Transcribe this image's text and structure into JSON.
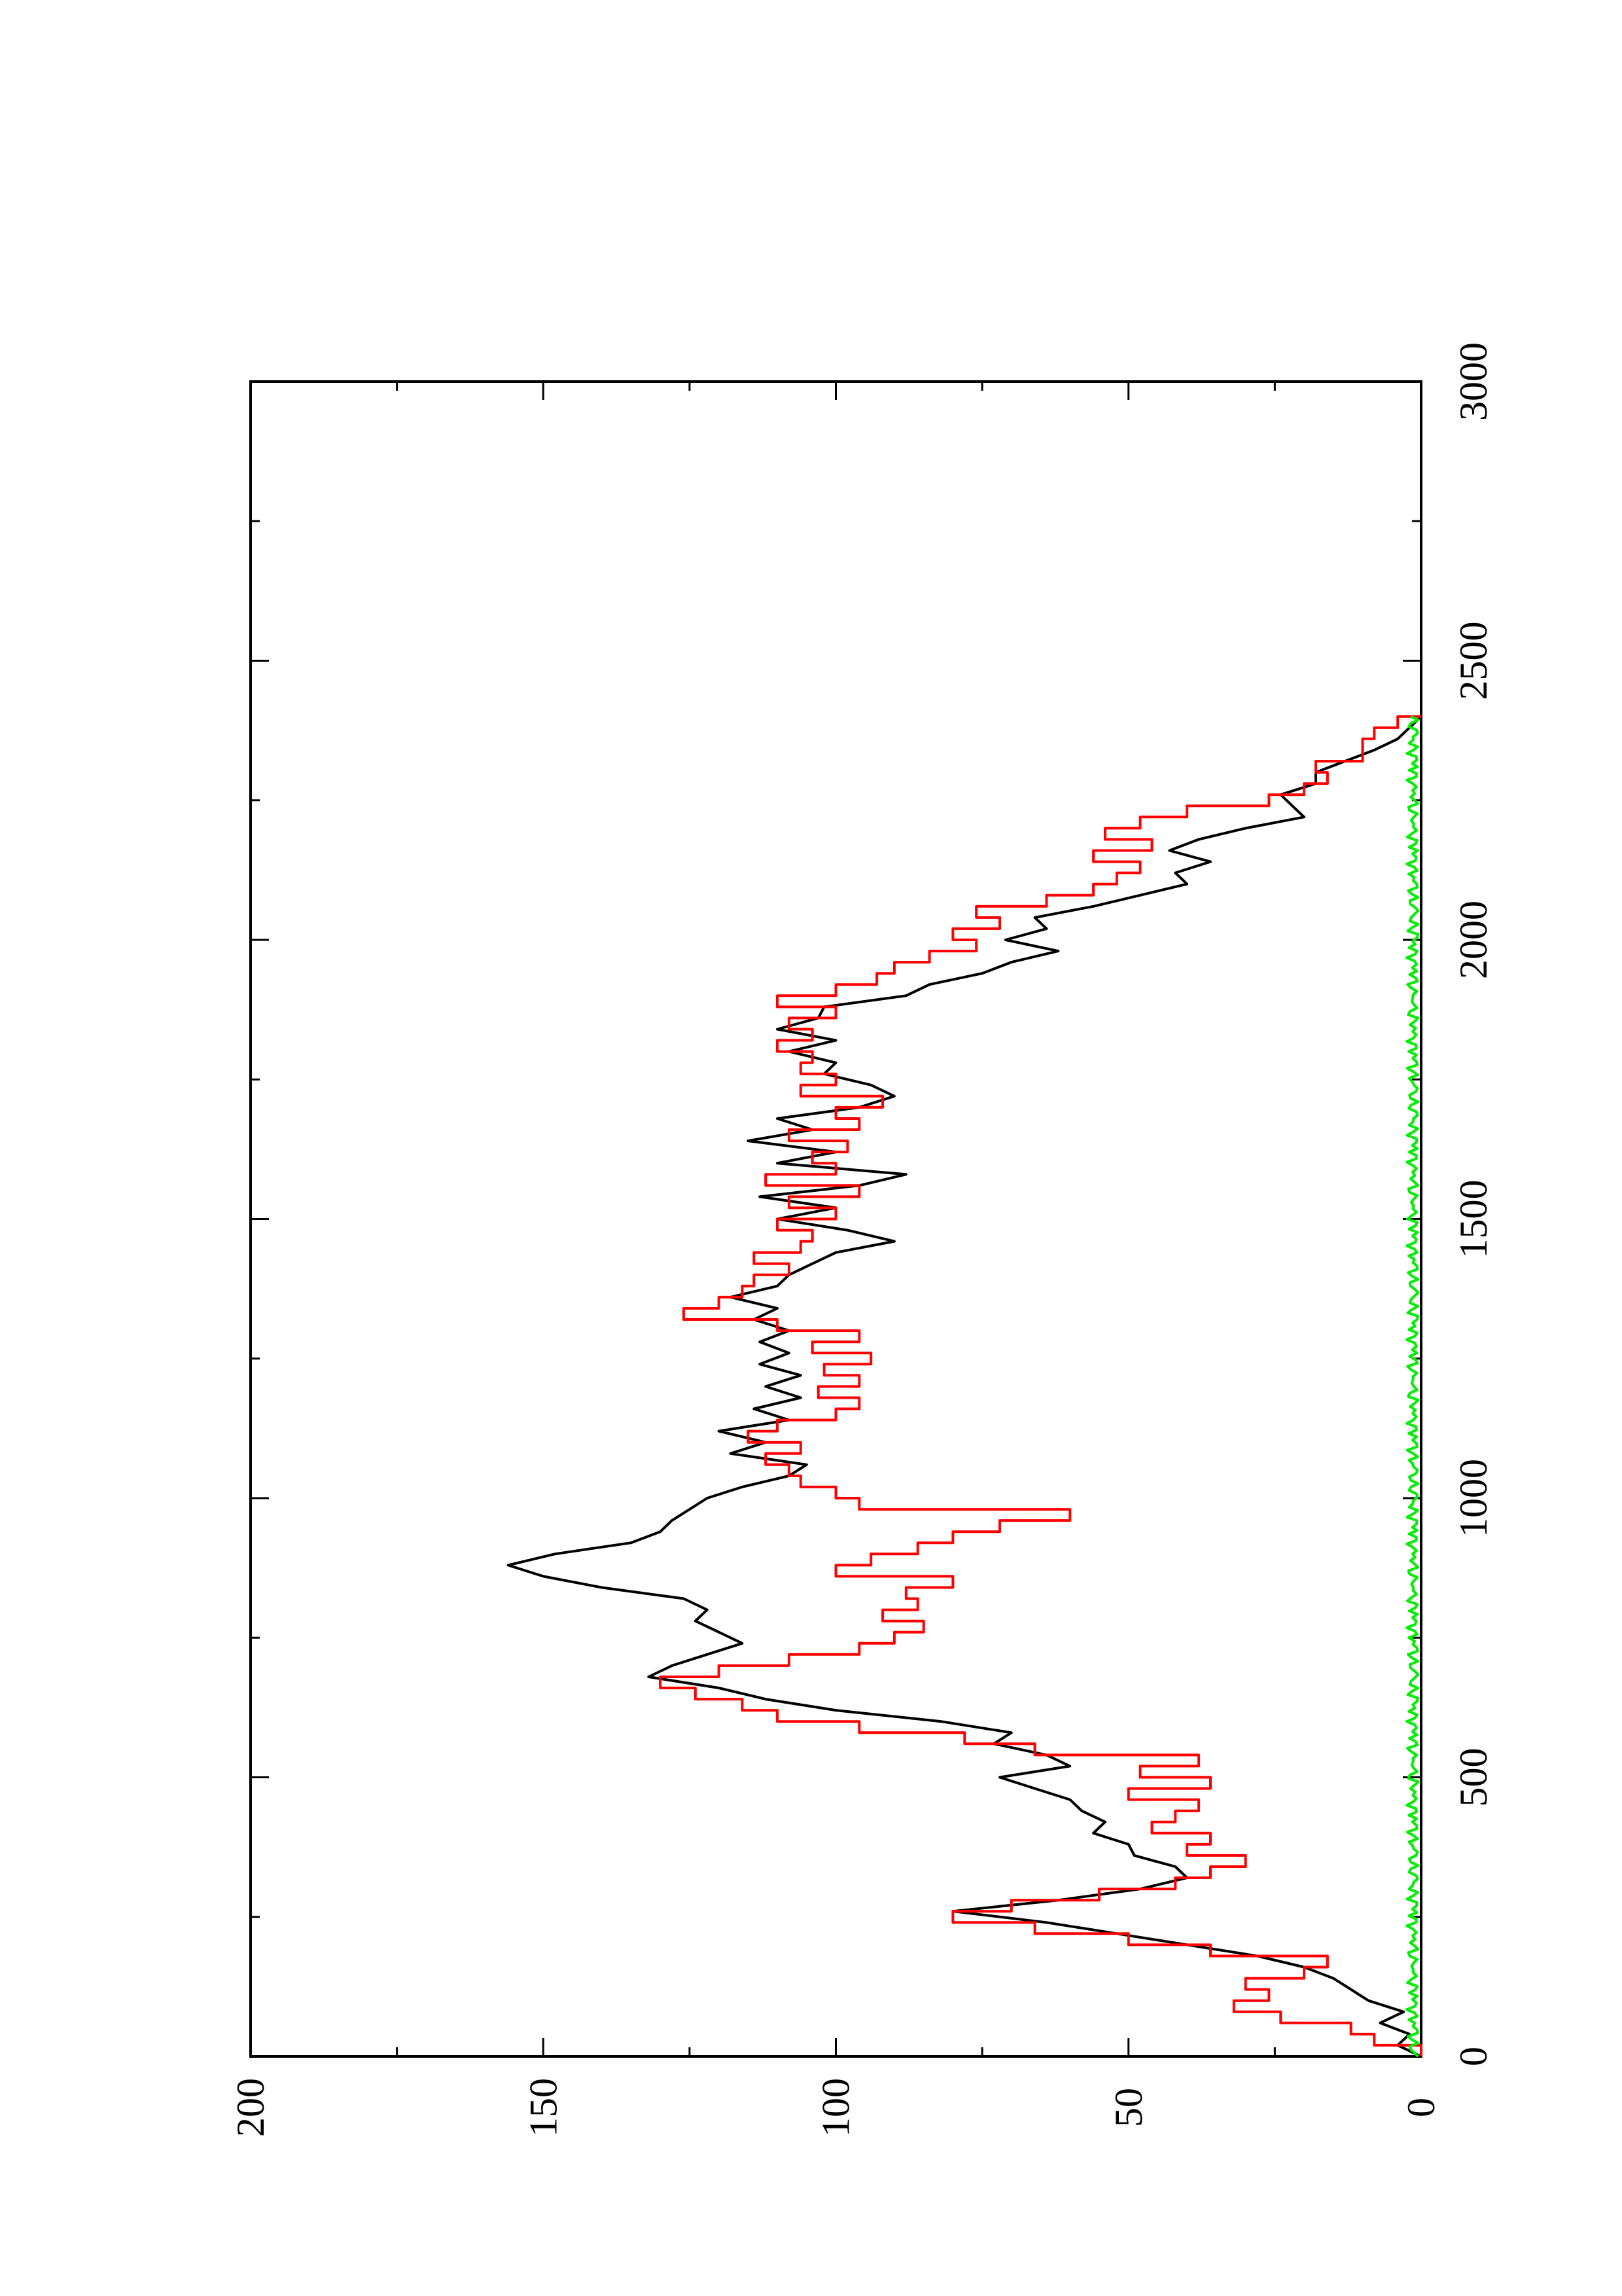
{
  "chart_data": {
    "type": "line",
    "title": "",
    "xlabel": "",
    "ylabel": "",
    "xlim": [
      0,
      3000
    ],
    "ylim": [
      0,
      200
    ],
    "x_ticks": [
      0,
      500,
      1000,
      1500,
      2000,
      2500,
      3000
    ],
    "x_tick_labels": [
      "0",
      "500",
      "1000",
      "1500",
      "2000",
      "2500",
      "3000"
    ],
    "y_ticks": [
      0,
      50,
      100,
      150,
      200
    ],
    "y_tick_labels": [
      "0",
      "50",
      "100",
      "150",
      "200"
    ],
    "grid": false,
    "legend": "none",
    "orientation": "page rotated 90 degrees counter-clockwise",
    "series": [
      {
        "color": "#000000",
        "x": [
          0,
          20,
          40,
          60,
          80,
          100,
          120,
          140,
          160,
          180,
          200,
          220,
          240,
          260,
          280,
          300,
          320,
          340,
          360,
          380,
          400,
          420,
          440,
          460,
          480,
          500,
          520,
          540,
          560,
          580,
          600,
          620,
          640,
          660,
          680,
          700,
          720,
          740,
          760,
          780,
          800,
          820,
          840,
          860,
          880,
          900,
          920,
          940,
          960,
          980,
          1000,
          1020,
          1040,
          1060,
          1080,
          1100,
          1120,
          1140,
          1160,
          1180,
          1200,
          1220,
          1240,
          1260,
          1280,
          1300,
          1320,
          1340,
          1360,
          1380,
          1400,
          1420,
          1440,
          1460,
          1480,
          1500,
          1520,
          1540,
          1560,
          1580,
          1600,
          1620,
          1640,
          1660,
          1680,
          1700,
          1720,
          1740,
          1760,
          1780,
          1800,
          1820,
          1840,
          1860,
          1880,
          1900,
          1920,
          1940,
          1960,
          1980,
          2000,
          2020,
          2040,
          2060,
          2080,
          2100,
          2120,
          2140,
          2160,
          2180,
          2200,
          2220,
          2240,
          2260,
          2280,
          2300,
          2320,
          2340,
          2360,
          2380,
          2400
        ],
        "y": [
          0,
          4,
          2,
          7,
          3,
          9,
          12,
          15,
          20,
          28,
          40,
          52,
          64,
          80,
          62,
          48,
          40,
          42,
          49,
          50,
          56,
          54,
          58,
          60,
          66,
          72,
          60,
          64,
          73,
          70,
          82,
          100,
          112,
          120,
          132,
          128,
          122,
          116,
          120,
          124,
          122,
          126,
          140,
          150,
          156,
          148,
          135,
          130,
          128,
          125,
          122,
          116,
          108,
          105,
          118,
          112,
          120,
          108,
          114,
          106,
          112,
          106,
          113,
          108,
          113,
          108,
          114,
          110,
          118,
          110,
          108,
          104,
          100,
          90,
          98,
          110,
          100,
          113,
          96,
          88,
          110,
          100,
          115,
          104,
          110,
          96,
          90,
          94,
          102,
          100,
          108,
          100,
          110,
          103,
          102,
          88,
          84,
          75,
          70,
          62,
          71,
          64,
          66,
          56,
          48,
          40,
          42,
          36,
          43,
          38,
          30,
          20,
          22,
          24,
          18,
          18,
          13,
          8,
          4,
          2,
          0
        ],
        "name": ""
      },
      {
        "color": "#ff0000",
        "x": [
          0,
          20,
          40,
          60,
          80,
          100,
          120,
          140,
          160,
          180,
          200,
          220,
          240,
          260,
          280,
          300,
          320,
          340,
          360,
          380,
          400,
          420,
          440,
          460,
          480,
          500,
          520,
          540,
          560,
          580,
          600,
          620,
          640,
          660,
          680,
          700,
          720,
          740,
          760,
          780,
          800,
          820,
          840,
          860,
          880,
          900,
          920,
          940,
          960,
          980,
          1000,
          1020,
          1040,
          1060,
          1080,
          1100,
          1120,
          1140,
          1160,
          1180,
          1200,
          1220,
          1240,
          1260,
          1280,
          1300,
          1320,
          1340,
          1360,
          1380,
          1400,
          1420,
          1440,
          1460,
          1480,
          1500,
          1520,
          1540,
          1560,
          1580,
          1600,
          1620,
          1640,
          1660,
          1680,
          1700,
          1720,
          1740,
          1760,
          1780,
          1800,
          1820,
          1840,
          1860,
          1880,
          1900,
          1920,
          1940,
          1960,
          1980,
          2000,
          2020,
          2040,
          2060,
          2080,
          2100,
          2120,
          2140,
          2160,
          2180,
          2200,
          2220,
          2240,
          2260,
          2280,
          2300,
          2320,
          2340,
          2360,
          2380,
          2400
        ],
        "y": [
          0,
          8,
          12,
          24,
          32,
          26,
          30,
          20,
          16,
          36,
          50,
          66,
          80,
          70,
          55,
          42,
          36,
          30,
          40,
          36,
          46,
          42,
          38,
          50,
          36,
          48,
          38,
          66,
          78,
          96,
          110,
          116,
          124,
          130,
          120,
          108,
          96,
          90,
          85,
          92,
          86,
          88,
          80,
          100,
          94,
          86,
          80,
          72,
          60,
          96,
          100,
          106,
          108,
          112,
          106,
          115,
          110,
          100,
          96,
          103,
          96,
          102,
          94,
          104,
          96,
          110,
          126,
          120,
          116,
          114,
          108,
          114,
          106,
          104,
          110,
          100,
          108,
          96,
          112,
          100,
          104,
          98,
          108,
          96,
          100,
          92,
          106,
          100,
          106,
          104,
          110,
          104,
          108,
          100,
          110,
          100,
          93,
          90,
          84,
          76,
          80,
          72,
          76,
          64,
          56,
          52,
          48,
          56,
          46,
          54,
          48,
          40,
          26,
          20,
          16,
          18,
          10,
          10,
          8,
          4,
          0
        ],
        "name": ""
      },
      {
        "color": "#00ee00",
        "x": [
          0,
          2400
        ],
        "y": [
          0.5,
          0.5
        ],
        "noise_amplitude": 2,
        "name": ""
      }
    ]
  }
}
